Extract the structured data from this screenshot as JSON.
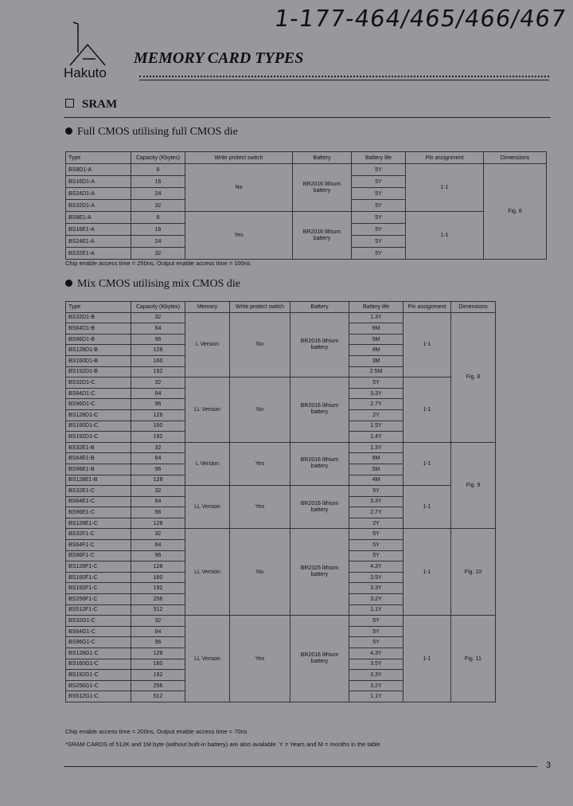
{
  "header": {
    "handwritten": "1-177-464/465/466/467",
    "logo": "Hakuto",
    "title": "MEMORY CARD TYPES"
  },
  "section": "SRAM",
  "table1": {
    "heading": "Full CMOS utilising full CMOS die",
    "columns": [
      "Type",
      "Capacity (Kbytes)",
      "Write protect switch",
      "Battery",
      "Battery life",
      "Pin assignment",
      "Dimensions"
    ],
    "blocks": [
      {
        "dimensions": "Fig. 8",
        "groups": [
          {
            "write_protect": "No",
            "battery": "BR2016 lithium battery",
            "pin_assignment": "1-1",
            "rows": [
              [
                "BS8D1-A",
                "8",
                "5Y"
              ],
              [
                "BS16D1-A",
                "16",
                "5Y"
              ],
              [
                "BS24D1-A",
                "24",
                "5Y"
              ],
              [
                "BS32D1-A",
                "32",
                "5Y"
              ]
            ]
          },
          {
            "write_protect": "Yes",
            "battery": "BR2016 lithium battery",
            "pin_assignment": "1-1",
            "rows": [
              [
                "BS8E1-A",
                "8",
                "5Y"
              ],
              [
                "BS16E1-A",
                "16",
                "5Y"
              ],
              [
                "BS24E1-A",
                "24",
                "5Y"
              ],
              [
                "BS32E1-A",
                "32",
                "5Y"
              ]
            ]
          }
        ]
      }
    ],
    "notes": [
      "Chip enable access time = 250ns, Output enable access time = 100ns"
    ]
  },
  "table2": {
    "heading": "Mix CMOS utilising mix CMOS die",
    "columns": [
      "Type",
      "Capacity (Kbytes)",
      "Memory",
      "Write protect switch",
      "Battery",
      "Battery life",
      "Pin assignment",
      "Dimensions"
    ],
    "blocks": [
      {
        "dimensions": "Fig. 8",
        "groups": [
          {
            "memory": "L Version",
            "write_protect": "No",
            "battery": "BR2016 lithium battery",
            "pin_assignment": "1-1",
            "rows": [
              [
                "BS32D1-B",
                "32",
                "1.3Y"
              ],
              [
                "BS64D1-B",
                "64",
                "9M"
              ],
              [
                "BS96D1-B",
                "96",
                "5M"
              ],
              [
                "BS128D1-B",
                "128",
                "4M"
              ],
              [
                "BS160D1-B",
                "160",
                "3M"
              ],
              [
                "BS192D1-B",
                "192",
                "2.5M"
              ]
            ]
          },
          {
            "memory": "LL Version",
            "write_protect": "No",
            "battery": "BR2016 lithium battery",
            "pin_assignment": "1-1",
            "rows": [
              [
                "BS32D1-C",
                "32",
                "5Y"
              ],
              [
                "BS64D1-C",
                "64",
                "3.3Y"
              ],
              [
                "BS96D1-C",
                "96",
                "2.7Y"
              ],
              [
                "BS128D1-C",
                "128",
                "2Y"
              ],
              [
                "BS160D1-C",
                "160",
                "1.5Y"
              ],
              [
                "BS192D1-C",
                "192",
                "1.4Y"
              ]
            ]
          }
        ]
      },
      {
        "dimensions": "Fig. 9",
        "groups": [
          {
            "memory": "L Version",
            "write_protect": "Yes",
            "battery": "BR2016 lithium battery",
            "pin_assignment": "1-1",
            "rows": [
              [
                "BS32E1-B",
                "32",
                "1.3Y"
              ],
              [
                "BS64E1-B",
                "64",
                "9M"
              ],
              [
                "BS96E1-B",
                "96",
                "5M"
              ],
              [
                "BS128E1-B",
                "128",
                "4M"
              ]
            ]
          },
          {
            "memory": "LL Version",
            "write_protect": "Yes",
            "battery": "BR2016 lithium battery",
            "pin_assignment": "1-1",
            "rows": [
              [
                "BS32E1-C",
                "32",
                "5Y"
              ],
              [
                "BS64E1-C",
                "64",
                "3.3Y"
              ],
              [
                "BS96E1-C",
                "96",
                "2.7Y"
              ],
              [
                "BS128E1-C",
                "128",
                "2Y"
              ]
            ]
          }
        ]
      },
      {
        "dimensions": "Fig. 10",
        "groups": [
          {
            "memory": "LL Version",
            "write_protect": "No",
            "battery": "BR2325 lithium battery",
            "pin_assignment": "1-1",
            "rows": [
              [
                "BS32F1-C",
                "32",
                "5Y"
              ],
              [
                "BS64F1-C",
                "64",
                "5Y"
              ],
              [
                "BS96F1-C",
                "96",
                "5Y"
              ],
              [
                "BS128F1-C",
                "128",
                "4.3Y"
              ],
              [
                "BS160F1-C",
                "160",
                "3.5Y"
              ],
              [
                "BS192F1-C",
                "192",
                "3.3Y"
              ],
              [
                "BS256F1-C",
                "256",
                "3.2Y"
              ],
              [
                "BS512F1-C",
                "512",
                "1.1Y"
              ]
            ]
          }
        ]
      },
      {
        "dimensions": "Fig. 11",
        "groups": [
          {
            "memory": "LL Version",
            "write_protect": "Yes",
            "battery": "BR2016 lithium battery",
            "pin_assignment": "1-1",
            "rows": [
              [
                "BS32G1-C",
                "32",
                "5Y"
              ],
              [
                "BS64G1-C",
                "64",
                "5Y"
              ],
              [
                "BS96G1-C",
                "96",
                "5Y"
              ],
              [
                "BS128G1-C",
                "128",
                "4.3Y"
              ],
              [
                "BS160G1-C",
                "160",
                "3.5Y"
              ],
              [
                "BS192G1-C",
                "192",
                "3.3Y"
              ],
              [
                "BS256G1-C",
                "256",
                "3.2Y"
              ],
              [
                "BS512G1-C",
                "512",
                "1.1Y"
              ]
            ]
          }
        ]
      }
    ],
    "notes": [
      "Chip enable access time = 200ns, Output enable access time = 70ns",
      "*SRAM CARDS of 512K and 1M byte (without built-in battery) are also available.  Y = Years and M = months in the table"
    ]
  },
  "page_number": "3"
}
